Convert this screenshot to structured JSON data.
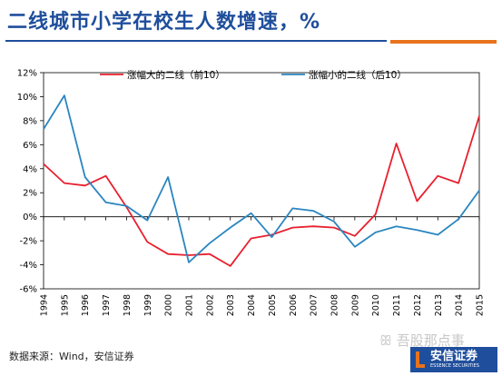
{
  "page": {
    "title": "二线城市小学在校生人数增速，%",
    "source": "数据来源：Wind，安信证券",
    "watermark": "ꕥ 吾股那点事",
    "logo_cn": "安信证券",
    "logo_en": "ESSENCE SECURITIES"
  },
  "colors": {
    "title": "#1f4e9c",
    "accent": "#e8731c",
    "series_red": "#e8202e",
    "series_blue": "#2a86c0"
  },
  "chart_data": {
    "type": "line",
    "categories": [
      "1994",
      "1995",
      "1996",
      "1997",
      "1998",
      "1999",
      "2000",
      "2001",
      "2002",
      "2003",
      "2004",
      "2005",
      "2006",
      "2007",
      "2008",
      "2009",
      "2010",
      "2011",
      "2012",
      "2013",
      "2014",
      "2015"
    ],
    "series": [
      {
        "name": "涨幅大的二线（前10）",
        "color": "#e8202e",
        "values": [
          4.4,
          2.8,
          2.6,
          3.4,
          0.8,
          -2.1,
          -3.1,
          -3.2,
          -3.1,
          -4.1,
          -1.8,
          -1.5,
          -0.9,
          -0.8,
          -0.9,
          -1.6,
          0.2,
          6.1,
          1.3,
          3.4,
          2.8,
          8.4
        ]
      },
      {
        "name": "涨幅小的二线（后10）",
        "color": "#2a86c0",
        "values": [
          7.3,
          10.1,
          3.3,
          1.2,
          0.9,
          -0.3,
          3.3,
          -3.8,
          -2.2,
          -0.9,
          0.3,
          -1.7,
          0.7,
          0.5,
          -0.4,
          -2.5,
          -1.3,
          -0.8,
          -1.1,
          -1.5,
          -0.2,
          2.2
        ]
      }
    ],
    "yticks": [
      "12%",
      "10%",
      "8%",
      "6%",
      "4%",
      "2%",
      "0%",
      "-2%",
      "-4%",
      "-6%"
    ],
    "ylim": [
      -6,
      12
    ],
    "legend_position": "top"
  }
}
